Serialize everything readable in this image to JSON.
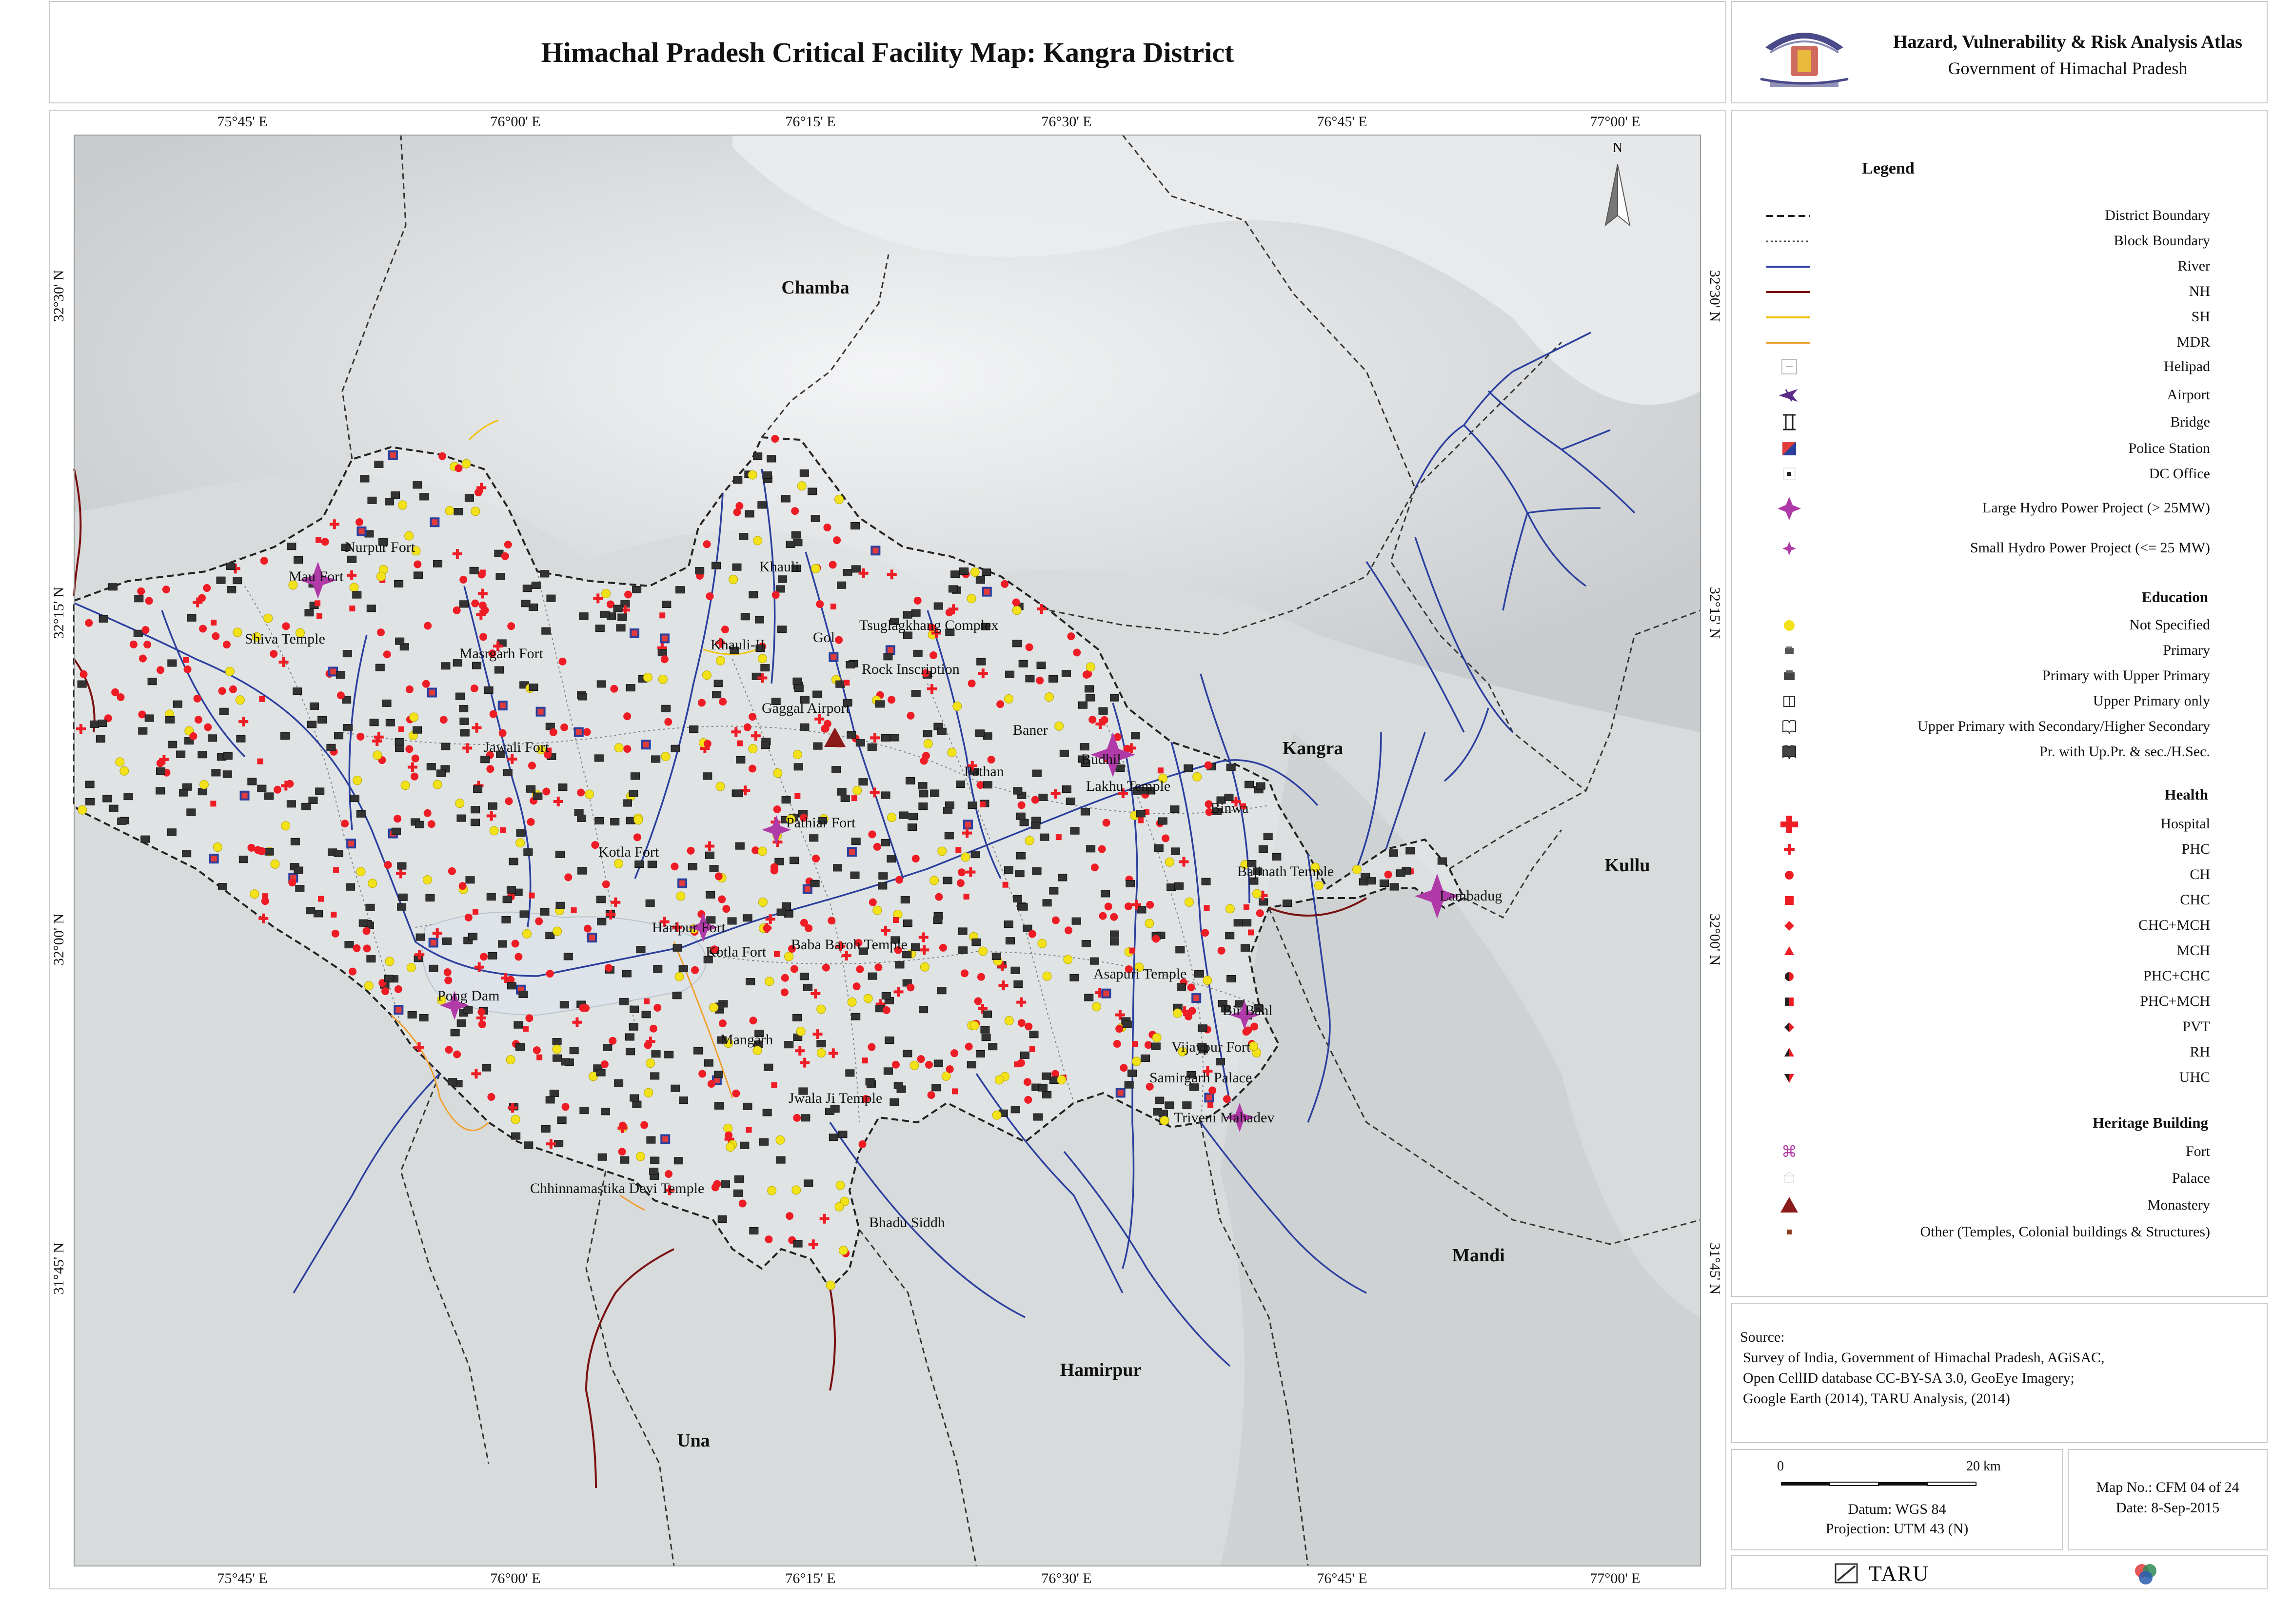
{
  "header": {
    "title": "Himachal Pradesh Critical Facility Map: Kangra District",
    "atlas_title": "Hazard, Vulnerability & Risk Analysis Atlas",
    "atlas_subtitle": "Government of Himachal Pradesh"
  },
  "map": {
    "longitude_ticks": [
      "75°45' E",
      "76°00' E",
      "76°15' E",
      "76°30' E",
      "76°45' E",
      "77°00' E"
    ],
    "latitude_ticks": [
      "32°30' N",
      "32°15' N",
      "32°00' N",
      "31°45' N"
    ],
    "north_label": "N",
    "districts": [
      "Chamba",
      "Kangra",
      "Kullu",
      "Mandi",
      "Hamirpur",
      "Una"
    ],
    "places": [
      "Khauli",
      "Tsuglagkhang Complex",
      "Gol",
      "Khauli-II",
      "Rock Inscription",
      "Gaggal Airport",
      "Nurpur Fort",
      "Mau Fort",
      "Shiva Temple",
      "Masrgarh Fort",
      "Jawali Fort",
      "Baner",
      "Budhil",
      "Lakhu Temple",
      "Binwa",
      "Pathan",
      "Pathiar Fort",
      "Kotla Fort",
      "Haripur Fort",
      "Baba Baroh Temple",
      "Bajinath Temple",
      "Lambadug",
      "Pong Dam",
      "Kotla Fort",
      "Mangarh",
      "Jwala Ji Temple",
      "Chhinnamastika Devi Temple",
      "Bhadu Siddh",
      "Asapuri Temple",
      "Bir Bahl",
      "Vijaypur Fort",
      "Triveni Mahadev",
      "Samirgarh Palace"
    ]
  },
  "legend": {
    "title": "Legend",
    "lines": [
      "District Boundary",
      "Block Boundary",
      "River",
      "NH",
      "SH",
      "MDR"
    ],
    "infra": [
      "Helipad",
      "Airport",
      "Bridge",
      "Police Station",
      "DC Office",
      "Large Hydro Power Project (> 25MW)",
      "Small Hydro Power Project (<= 25 MW)"
    ],
    "education_heading": "Education",
    "education": [
      "Not Specified",
      "Primary",
      "Primary with Upper Primary",
      "Upper Primary only",
      "Upper Primary with Secondary/Higher Secondary",
      "Pr. with Up.Pr. & sec./H.Sec."
    ],
    "health_heading": "Health",
    "health": [
      "Hospital",
      "PHC",
      "CH",
      "CHC",
      "CHC+MCH",
      "MCH",
      "PHC+CHC",
      "PHC+MCH",
      "PVT",
      "RH",
      "UHC"
    ],
    "heritage_heading": "Heritage Building",
    "heritage": [
      "Fort",
      "Palace",
      "Monastery",
      "Other (Temples, Colonial buildings & Structures)"
    ]
  },
  "colors": {
    "district_boundary": "#222222",
    "river": "#2b3f9e",
    "nh": "#7a1010",
    "sh": "#f2c200",
    "mdr": "#f0a030",
    "hydro": "#b03aa8",
    "health": "#ee1c24",
    "education": "#f2e21a",
    "background": "#d6d9da",
    "monastery": "#8b1a1a"
  },
  "source": {
    "heading": "Source:",
    "lines": [
      "Survey of India, Government of Himachal Pradesh, AGiSAC,",
      "Open CellID database CC-BY-SA 3.0, GeoEye Imagery;",
      "Google Earth (2014), TARU Analysis, (2014)"
    ]
  },
  "scale": {
    "start": "0",
    "end": "20 km",
    "datum": "Datum: WGS 84",
    "projection": "Projection: UTM 43 (N)"
  },
  "map_info": {
    "map_no": "Map No.: CFM 04 of 24",
    "date": "Date: 8-Sep-2015"
  },
  "footer": {
    "brand": "TARU"
  }
}
